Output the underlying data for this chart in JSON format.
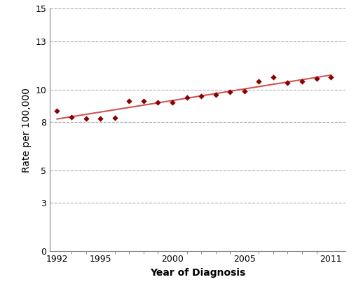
{
  "years": [
    1992,
    1993,
    1994,
    1995,
    1996,
    1997,
    1998,
    1999,
    2000,
    2001,
    2002,
    2003,
    2004,
    2005,
    2006,
    2007,
    2008,
    2009,
    2010,
    2011
  ],
  "rates": [
    8.7,
    8.3,
    8.2,
    8.2,
    8.25,
    9.3,
    9.3,
    9.2,
    9.2,
    9.5,
    9.6,
    9.7,
    9.85,
    9.9,
    10.5,
    10.75,
    10.4,
    10.5,
    10.7,
    10.75
  ],
  "xlabel": "Year of Diagnosis",
  "ylabel": "Rate per 100,000",
  "xlim": [
    1991.5,
    2012.0
  ],
  "ylim": [
    0,
    15
  ],
  "yticks": [
    0,
    3,
    5,
    8,
    10,
    13,
    15
  ],
  "xticks": [
    1992,
    1995,
    2000,
    2005,
    2011
  ],
  "dot_color": "#8B0000",
  "line_color": "#cc5555",
  "bg_color": "#ffffff",
  "grid_color": "#b0b0b0",
  "spine_color": "#888888",
  "xlabel_fontsize": 10,
  "ylabel_fontsize": 10,
  "tick_fontsize": 9
}
